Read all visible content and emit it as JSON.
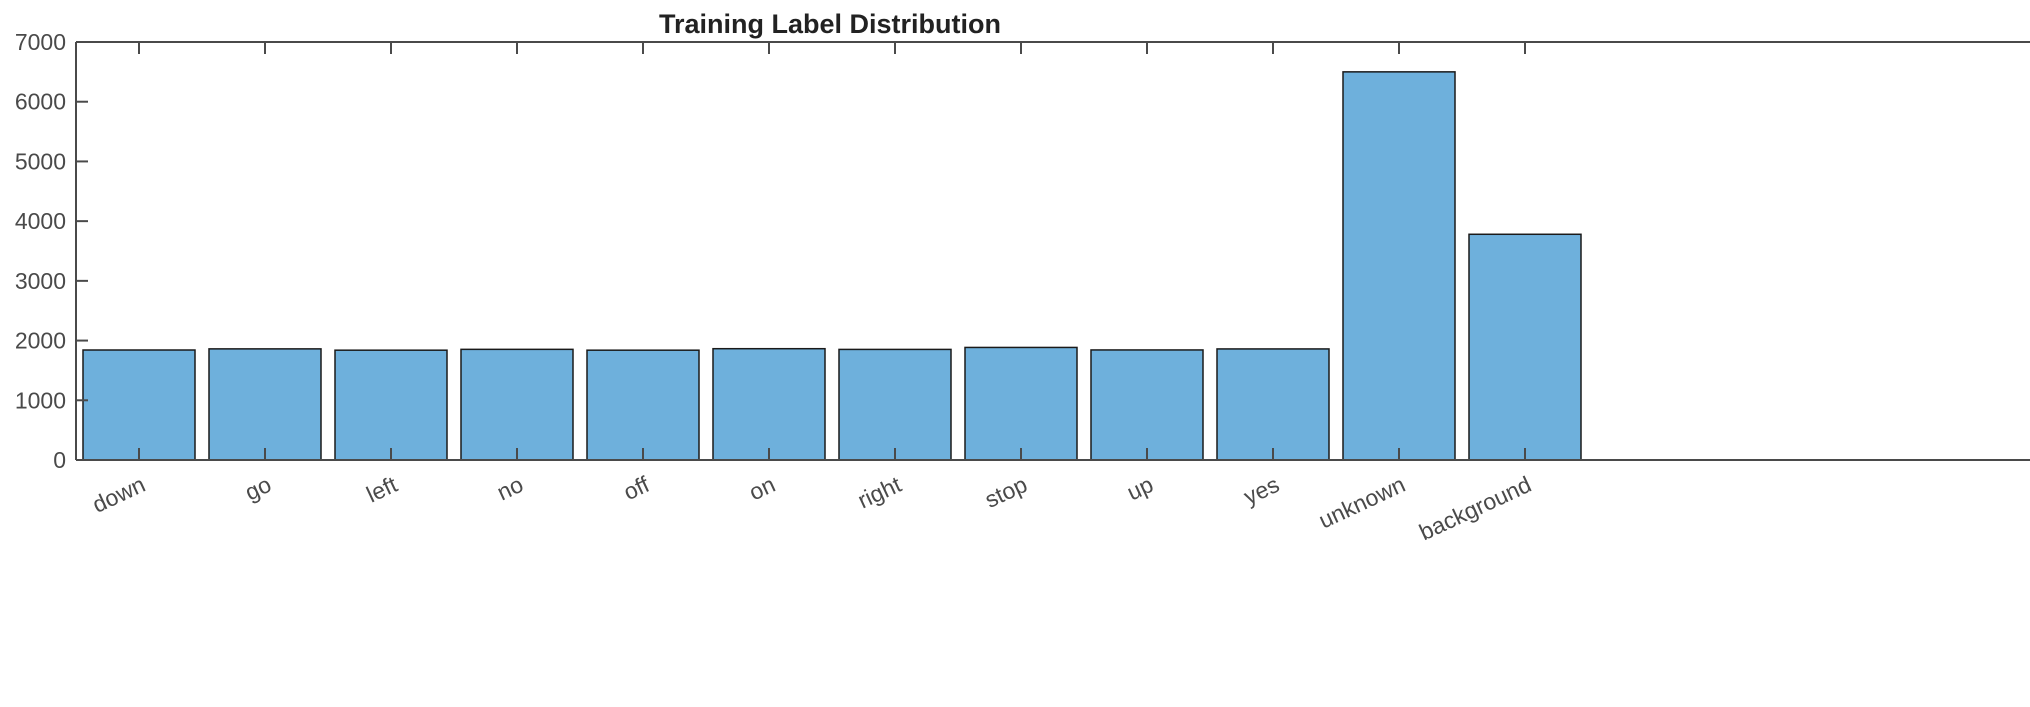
{
  "chart_data": {
    "type": "bar",
    "title": "Training Label Distribution",
    "xlabel": "",
    "ylabel": "",
    "categories": [
      "down",
      "go",
      "left",
      "no",
      "off",
      "on",
      "right",
      "stop",
      "up",
      "yes",
      "unknown",
      "background"
    ],
    "values": [
      1842,
      1861,
      1839,
      1853,
      1839,
      1864,
      1852,
      1885,
      1843,
      1860,
      6500,
      3780
    ],
    "ylim": [
      0,
      7000
    ],
    "yticks": [
      "0",
      "1000",
      "2000",
      "3000",
      "4000",
      "5000",
      "6000",
      "7000"
    ],
    "grid": false,
    "legend": "none",
    "bar_color": "#6eb0dc",
    "bar_edge_color": "#1a1a1a",
    "axis_color": "#4a4a4a"
  }
}
